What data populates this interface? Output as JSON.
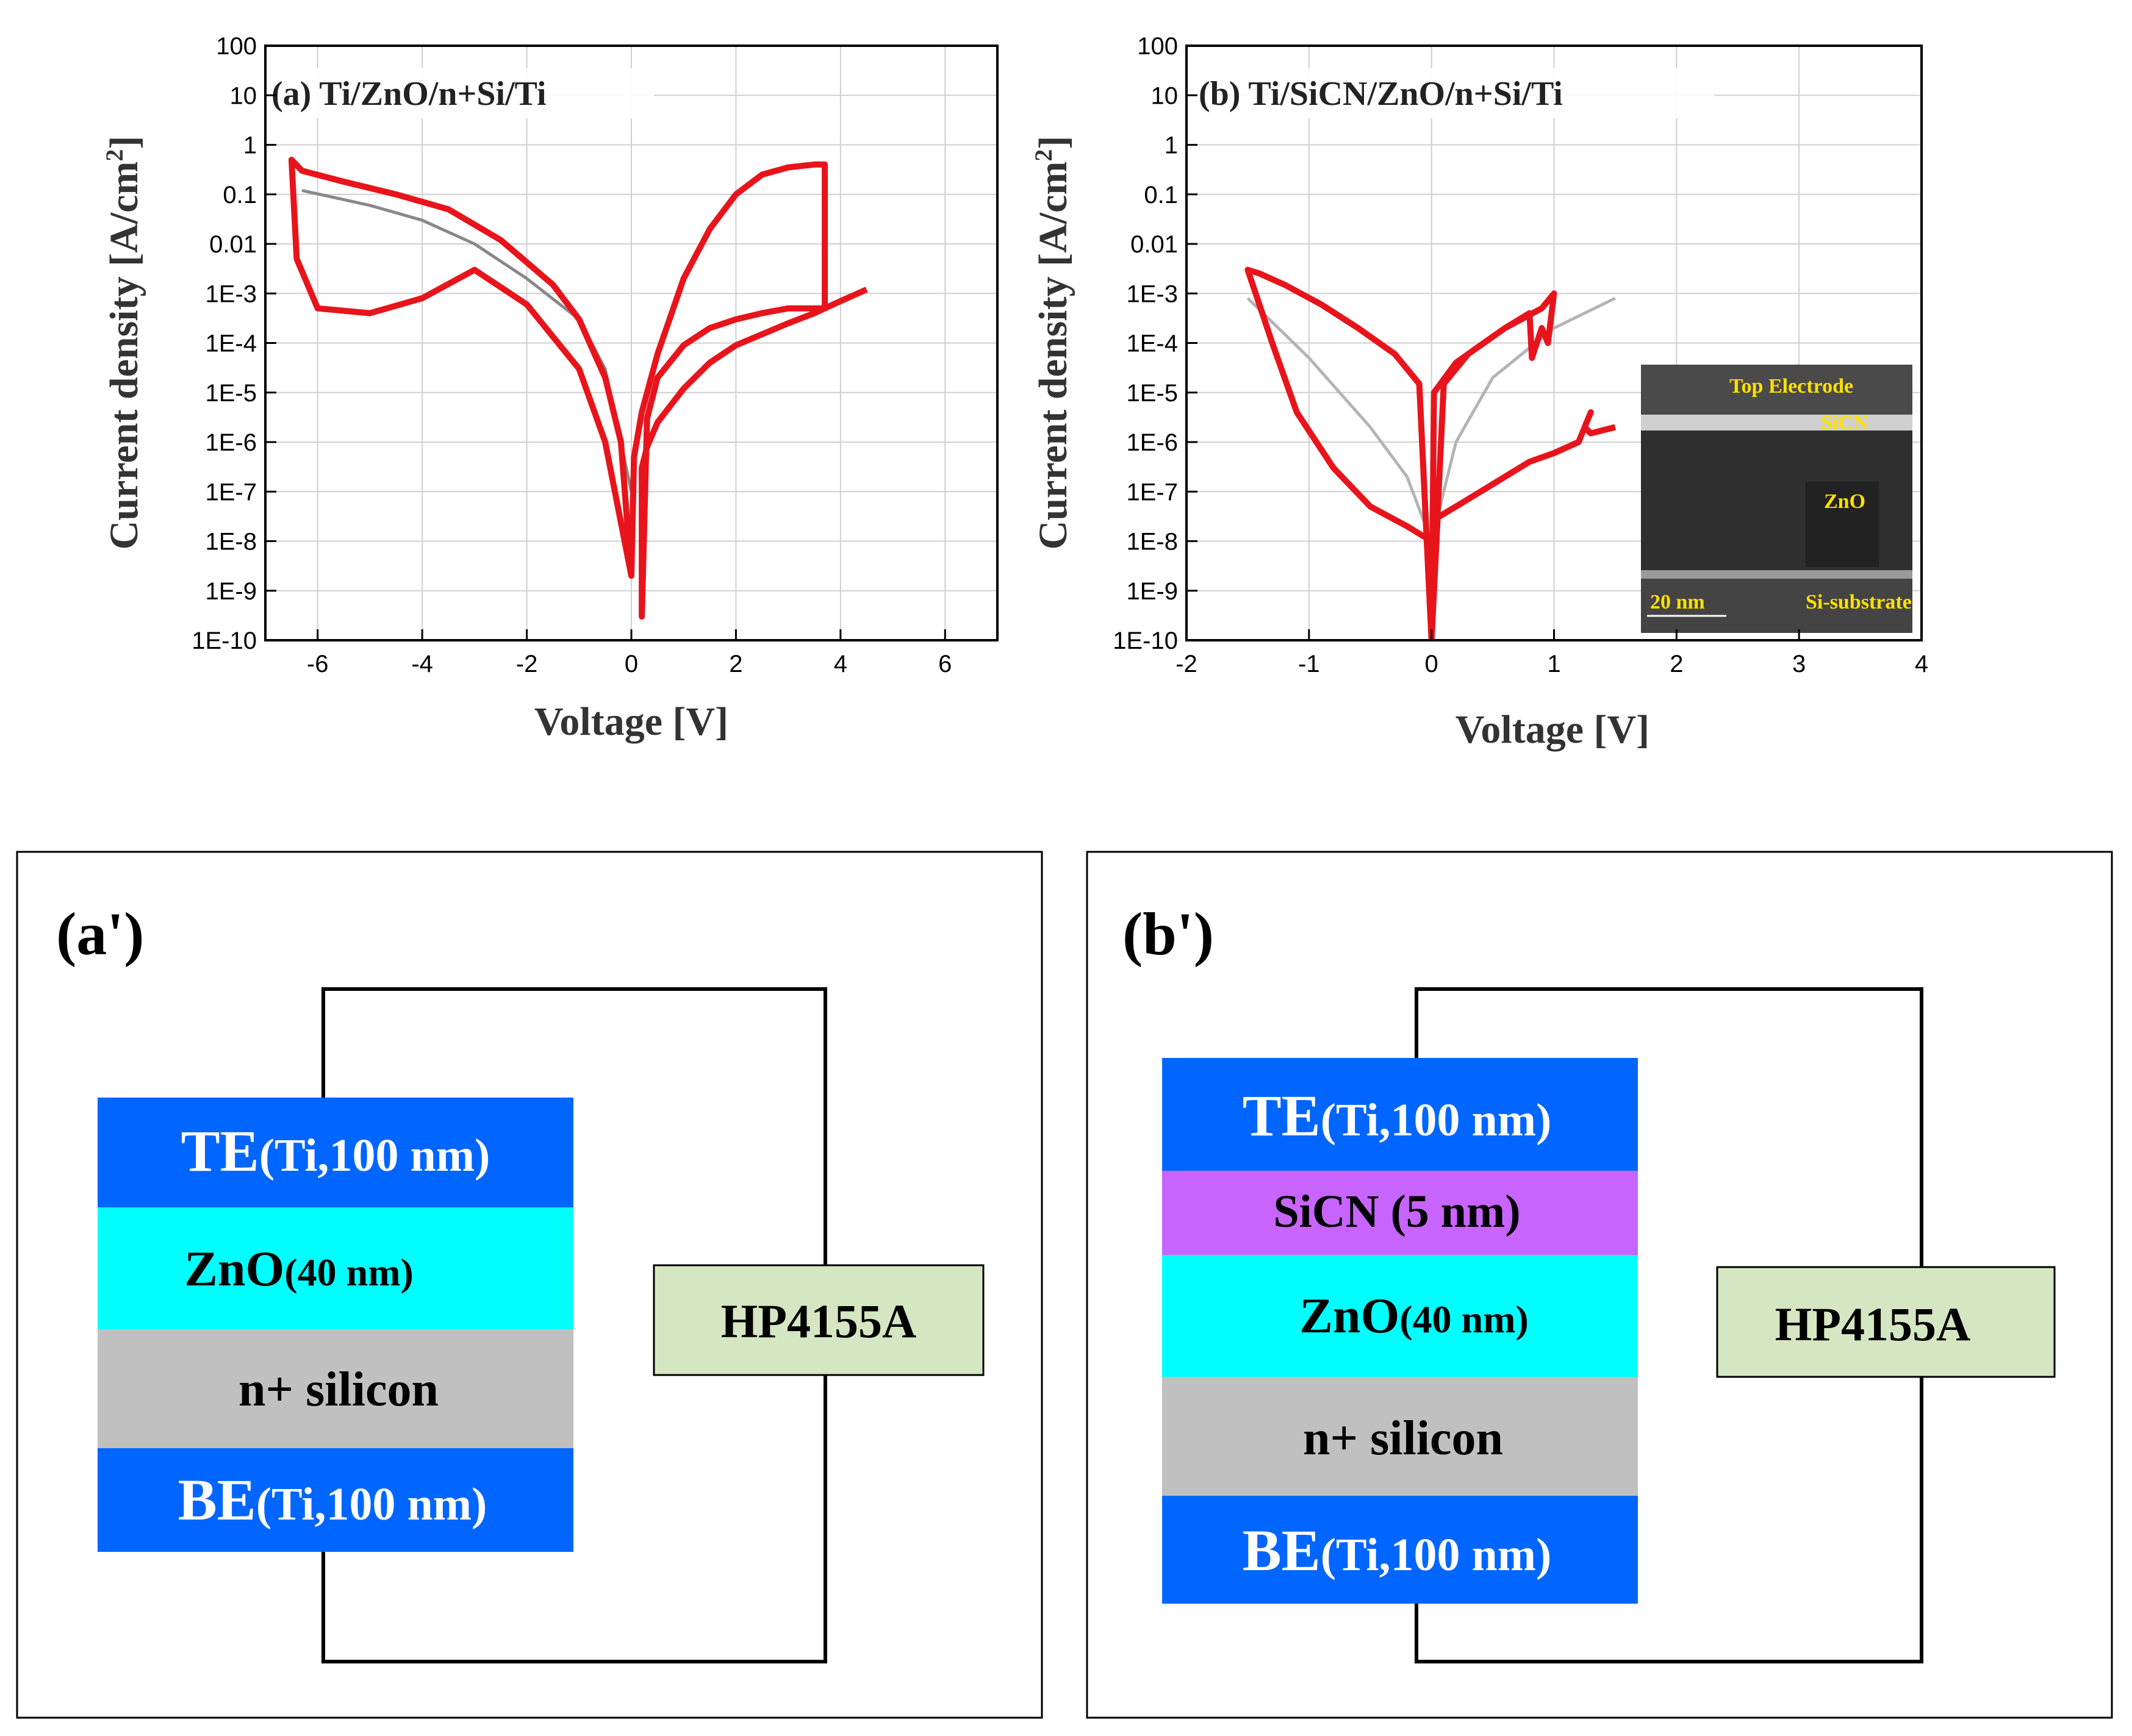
{
  "chart_data": [
    {
      "type": "line",
      "panel": "a",
      "title": "(a) Ti/ZnO/n+Si/Ti",
      "xlabel": "Voltage [V]",
      "ylabel": "Current density [A/cm",
      "ylabel_sup": "2",
      "ylabel_end": "]",
      "xlim": [
        -7,
        7
      ],
      "ylim_log10": [
        -10,
        2
      ],
      "x_ticks": [
        "-6",
        "-4",
        "-2",
        "0",
        "2",
        "4",
        "6"
      ],
      "y_ticks": [
        "1E-10",
        "1E-9",
        "1E-8",
        "1E-7",
        "1E-6",
        "1E-5",
        "1E-4",
        "1E-3",
        "0.01",
        "0.1",
        "1",
        "10",
        "100"
      ],
      "grid": true,
      "series": [
        {
          "name": "highlighted cycle",
          "color": "#e8141c",
          "x": [
            4.5,
            4.0,
            3.7,
            3.7,
            3.5,
            3.0,
            2.0,
            1.5,
            1.0,
            0.5,
            0.3,
            0.2,
            0.2,
            0.3,
            0.5,
            1.0,
            1.5,
            2.0,
            2.5,
            3.0,
            3.7,
            3.7,
            3.5,
            3.0,
            2.5,
            2.0,
            1.5,
            1.0,
            0.5,
            0.2,
            0.05,
            0.0,
            -0.5,
            -1.0,
            -2.0,
            -3.0,
            -4.0,
            -5.0,
            -6.0,
            -6.4,
            -6.5,
            -6.3,
            -5.5,
            -4.5,
            -3.5,
            -2.5,
            -1.5,
            -1.0,
            -0.5,
            -0.2,
            0.0
          ],
          "y": [
            0.0012,
            0.0007,
            0.0005,
            0.0005,
            0.0004,
            0.00025,
            9e-05,
            4e-05,
            1.2e-05,
            2.5e-06,
            8e-07,
            3e-07,
            3e-10,
            3e-06,
            2e-05,
            9e-05,
            0.0002,
            0.0003,
            0.0004,
            0.0005,
            0.0005,
            0.4,
            0.4,
            0.35,
            0.25,
            0.1,
            0.02,
            0.002,
            6e-05,
            4e-06,
            5e-07,
            2e-09,
            1e-06,
            3e-05,
            0.0006,
            0.003,
            0.0008,
            0.0004,
            0.0005,
            0.005,
            0.5,
            0.3,
            0.18,
            0.1,
            0.05,
            0.012,
            0.0015,
            0.0003,
            2e-05,
            1e-06,
            2e-09
          ]
        },
        {
          "name": "other cycles",
          "color": "#888888",
          "x": [
            -6.3,
            -5.0,
            -4.0,
            -3.0,
            -2.0,
            -1.0,
            -0.5,
            0.0
          ],
          "y": [
            0.12,
            0.06,
            0.03,
            0.01,
            0.002,
            0.0003,
            3e-05,
            1e-07
          ]
        }
      ]
    },
    {
      "type": "line",
      "panel": "b",
      "title": "(b) Ti/SiCN/ZnO/n+Si/Ti",
      "xlabel": "Voltage [V]",
      "ylabel": "Current density [A/cm",
      "ylabel_sup": "2",
      "ylabel_end": "]",
      "xlim": [
        -2,
        4
      ],
      "ylim_log10": [
        -10,
        2
      ],
      "x_ticks": [
        "-2",
        "-1",
        "0",
        "1",
        "2",
        "3",
        "4"
      ],
      "y_ticks": [
        "1E-10",
        "1E-9",
        "1E-8",
        "1E-7",
        "1E-6",
        "1E-5",
        "1E-4",
        "1E-3",
        "0.01",
        "0.1",
        "1",
        "10",
        "100"
      ],
      "grid": true,
      "inset_labels": [
        "Top Electrode",
        "SiCN",
        "ZnO",
        "Si-substrate"
      ],
      "inset_scalebar": "20 nm",
      "series": [
        {
          "name": "highlighted cycle",
          "color": "#e8141c",
          "x": [
            1.5,
            1.3,
            1.25,
            1.3,
            1.2,
            1.0,
            0.8,
            0.6,
            0.4,
            0.2,
            0.05,
            0.0,
            0.02,
            0.2,
            0.4,
            0.6,
            0.8,
            0.82,
            0.9,
            0.95,
            1.0,
            0.9,
            0.6,
            0.3,
            0.1,
            0.0,
            -0.1,
            -0.3,
            -0.6,
            -0.9,
            -1.2,
            -1.4,
            -1.5,
            -1.3,
            -1.1,
            -0.8,
            -0.5,
            -0.2,
            0.0
          ],
          "y": [
            2e-06,
            1.5e-06,
            2e-06,
            4e-06,
            1e-06,
            6e-07,
            4e-07,
            2e-07,
            1e-07,
            5e-08,
            3e-08,
            1e-10,
            1e-05,
            4e-05,
            9e-05,
            0.0002,
            0.0004,
            5e-05,
            0.0002,
            0.0001,
            0.001,
            0.0005,
            0.0002,
            6e-05,
            1.5e-05,
            1e-10,
            1.5e-05,
            6e-05,
            0.0002,
            0.0006,
            0.0015,
            0.0025,
            0.003,
            0.0001,
            4e-06,
            3e-07,
            5e-08,
            2e-08,
            1e-08
          ]
        },
        {
          "name": "other cycles",
          "color": "#b4b4b4",
          "x": [
            -1.5,
            -1.0,
            -0.5,
            -0.2,
            0.0,
            0.2,
            0.5,
            1.0,
            1.5
          ],
          "y": [
            0.0008,
            5e-05,
            2e-06,
            2e-07,
            1e-08,
            1e-06,
            2e-05,
            0.0002,
            0.0008
          ]
        }
      ]
    }
  ],
  "diagrams": [
    {
      "label": "(a')",
      "instrument": "HP4155A",
      "layers": [
        {
          "main": "TE",
          "sub": "(Ti,100 nm)",
          "color": "#0066ff",
          "text_color": "#ffffff"
        },
        {
          "main": "ZnO",
          "sub": "(40 nm)",
          "color": "#00ffff",
          "text_color": "#000000"
        },
        {
          "main": "n+ silicon",
          "sub": "",
          "color": "#c0c0c0",
          "text_color": "#000000"
        },
        {
          "main": "BE",
          "sub": "(Ti,100 nm)",
          "color": "#0066ff",
          "text_color": "#ffffff"
        }
      ]
    },
    {
      "label": "(b')",
      "instrument": "HP4155A",
      "layers": [
        {
          "main": "TE",
          "sub": "(Ti,100 nm)",
          "color": "#0066ff",
          "text_color": "#ffffff"
        },
        {
          "main": "SiCN (5 nm)",
          "sub": "",
          "color": "#c864ff",
          "text_color": "#000000"
        },
        {
          "main": "ZnO",
          "sub": "(40 nm)",
          "color": "#00ffff",
          "text_color": "#000000"
        },
        {
          "main": "n+ silicon",
          "sub": "",
          "color": "#c0c0c0",
          "text_color": "#000000"
        },
        {
          "main": "BE",
          "sub": "(Ti,100 nm)",
          "color": "#0066ff",
          "text_color": "#ffffff"
        }
      ]
    }
  ]
}
